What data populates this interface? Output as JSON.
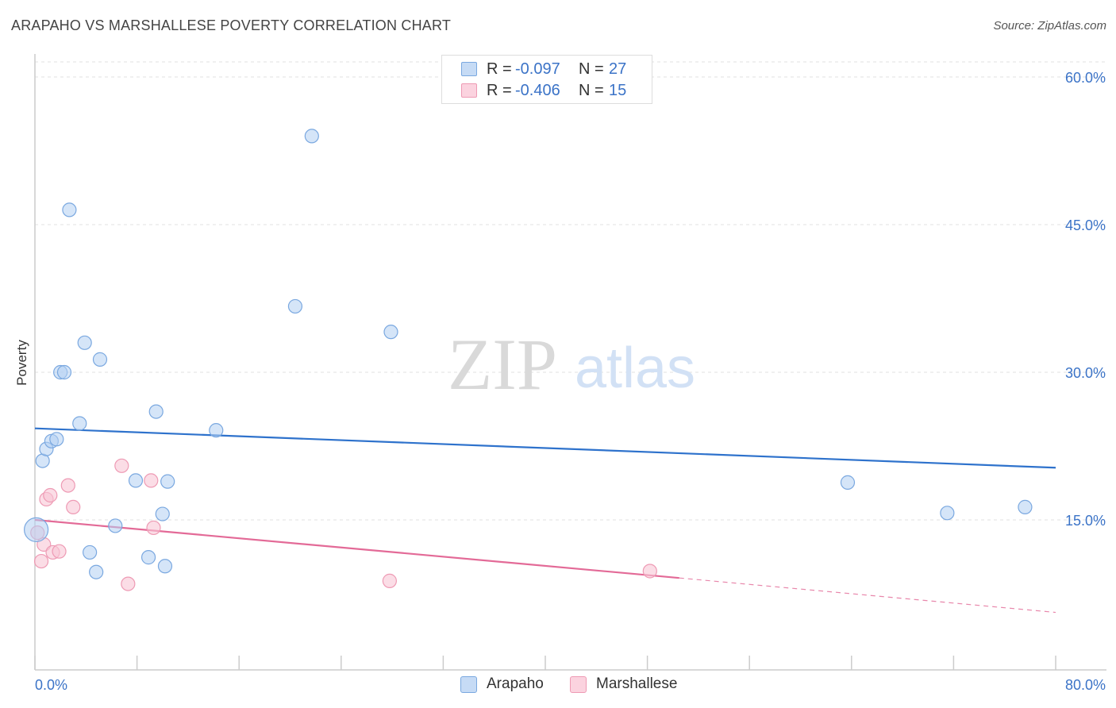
{
  "title": "ARAPAHO VS MARSHALLESE POVERTY CORRELATION CHART",
  "source": "Source: ZipAtlas.com",
  "watermark": {
    "zip": "ZIP",
    "atlas": "atlas"
  },
  "colors": {
    "arapaho_fill": "#b3cff2",
    "arapaho_stroke": "#7aa8e0",
    "arapaho_line": "#2e72cc",
    "marshallese_fill": "#f8c6d5",
    "marshallese_stroke": "#ee9ab4",
    "marshallese_line": "#e36a97",
    "axis_text": "#3b73c7",
    "grid": "#e2e2e2"
  },
  "legend": {
    "r_label": "R =",
    "n_label": "N =",
    "series": [
      {
        "r": "-0.097",
        "n": "27"
      },
      {
        "r": "-0.406",
        "n": "15"
      }
    ]
  },
  "chart_data": {
    "type": "scatter",
    "title": "ARAPAHO VS MARSHALLESE POVERTY CORRELATION CHART",
    "xlabel": "",
    "ylabel": "Poverty",
    "xlim": [
      0,
      80
    ],
    "ylim": [
      0,
      64
    ],
    "x_tick_labels": [
      "0.0%",
      "80.0%"
    ],
    "y_ticks": [
      15,
      30,
      45,
      60
    ],
    "y_tick_labels": [
      "15.0%",
      "30.0%",
      "45.0%",
      "60.0%"
    ],
    "grid": true,
    "legend_position": "top-center",
    "series": [
      {
        "name": "Arapaho",
        "points": [
          [
            0.1,
            14.0
          ],
          [
            0.6,
            21.0
          ],
          [
            0.9,
            22.2
          ],
          [
            1.3,
            23.0
          ],
          [
            1.7,
            23.2
          ],
          [
            2.0,
            30.0
          ],
          [
            2.3,
            30.0
          ],
          [
            2.7,
            46.5
          ],
          [
            3.5,
            24.8
          ],
          [
            3.9,
            33.0
          ],
          [
            4.3,
            11.7
          ],
          [
            4.8,
            9.7
          ],
          [
            5.1,
            31.3
          ],
          [
            6.3,
            14.4
          ],
          [
            7.9,
            19.0
          ],
          [
            8.9,
            11.2
          ],
          [
            9.5,
            26.0
          ],
          [
            10.0,
            15.6
          ],
          [
            10.2,
            10.3
          ],
          [
            10.4,
            18.9
          ],
          [
            14.2,
            24.1
          ],
          [
            20.4,
            36.7
          ],
          [
            21.7,
            54.0
          ],
          [
            27.9,
            34.1
          ],
          [
            63.7,
            18.8
          ],
          [
            71.5,
            15.7
          ],
          [
            77.6,
            16.3
          ]
        ],
        "trend": {
          "x": [
            0,
            80
          ],
          "y": [
            24.3,
            20.3
          ]
        }
      },
      {
        "name": "Marshallese",
        "points": [
          [
            0.2,
            13.7
          ],
          [
            0.5,
            10.8
          ],
          [
            0.7,
            12.5
          ],
          [
            0.9,
            17.1
          ],
          [
            1.2,
            17.5
          ],
          [
            1.4,
            11.7
          ],
          [
            1.9,
            11.8
          ],
          [
            2.6,
            18.5
          ],
          [
            3.0,
            16.3
          ],
          [
            6.8,
            20.5
          ],
          [
            7.3,
            8.5
          ],
          [
            9.1,
            19.0
          ],
          [
            9.3,
            14.2
          ],
          [
            27.8,
            8.8
          ],
          [
            48.2,
            9.8
          ]
        ],
        "trend": {
          "x": [
            0,
            50.5
          ],
          "y": [
            15.0,
            9.1
          ]
        },
        "trend_extension": {
          "x": [
            50.5,
            80
          ],
          "y": [
            9.1,
            5.6
          ]
        }
      }
    ]
  }
}
